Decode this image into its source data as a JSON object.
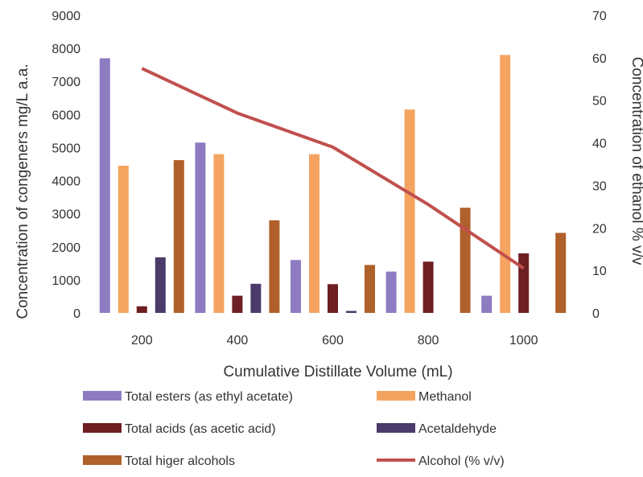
{
  "chart_data": {
    "type": "bar",
    "categories": [
      "200",
      "400",
      "600",
      "800",
      "1000"
    ],
    "xlabel": "Cumulative Distillate Volume (mL)",
    "ylabel": "Concentration of congeners mg/L a.a.",
    "y2label": "Concentration of ethanol % v/v",
    "ylim": [
      0,
      9000
    ],
    "y2lim": [
      0,
      70
    ],
    "yticks": [
      "0",
      "1000",
      "2000",
      "3000",
      "4000",
      "5000",
      "6000",
      "7000",
      "8000",
      "9000"
    ],
    "y2ticks": [
      "0",
      "10",
      "20",
      "30",
      "40",
      "50",
      "60",
      "70"
    ],
    "grid": false,
    "legend_position": "bottom",
    "series": [
      {
        "name": "Total esters (as ethyl acetate)",
        "color": "#8e7cc3",
        "values": [
          7700,
          5150,
          1600,
          1250,
          520
        ]
      },
      {
        "name": "Methanol",
        "color": "#f4a460",
        "values": [
          4450,
          4800,
          4800,
          6150,
          7800
        ]
      },
      {
        "name": "Total acids  (as acetic acid)",
        "color": "#6e1f24",
        "values": [
          200,
          520,
          870,
          1550,
          1800
        ]
      },
      {
        "name": "Acetaldehyde",
        "color": "#4a3b6b",
        "values": [
          1680,
          880,
          60,
          0,
          0
        ]
      },
      {
        "name": "Total higer alcohols",
        "color": "#b0602a",
        "values": [
          4620,
          2800,
          1450,
          3180,
          2420
        ]
      }
    ],
    "line_series": {
      "name": "Alcohol (% v/v)",
      "color": "#c0504d",
      "axis": "right",
      "values": [
        57.5,
        47,
        39,
        25.5,
        10.5
      ]
    }
  }
}
